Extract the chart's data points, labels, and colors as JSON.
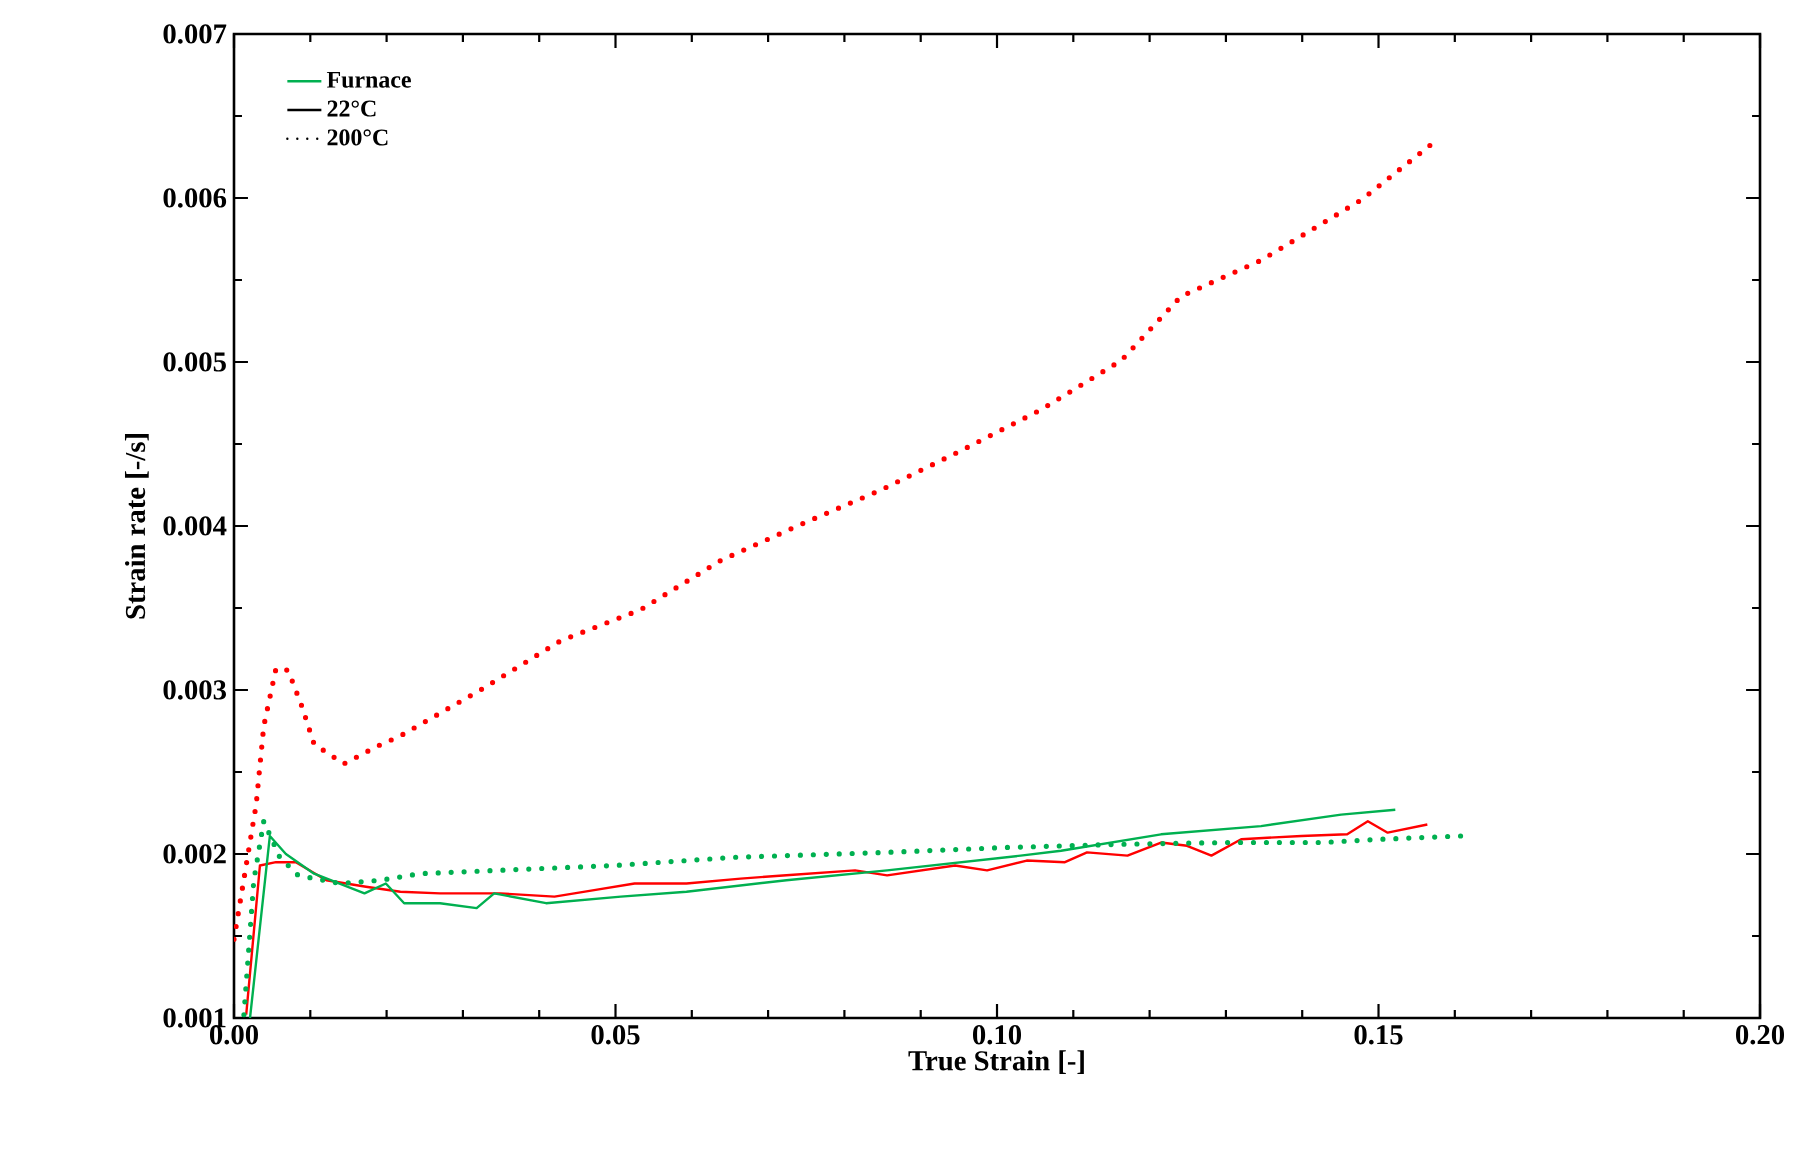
{
  "chart_data": {
    "type": "line",
    "xlabel": "True Strain [-]",
    "ylabel": "Strain rate [-/s]",
    "xlim": [
      0,
      0.2
    ],
    "ylim": [
      0.001,
      0.007
    ],
    "xticks": [
      {
        "value": 0,
        "label": "0.00"
      },
      {
        "value": 0.05,
        "label": "0.05"
      },
      {
        "value": 0.1,
        "label": "0.10"
      },
      {
        "value": 0.15,
        "label": "0.15"
      },
      {
        "value": 0.2,
        "label": "0.20"
      }
    ],
    "yticks": [
      0.001,
      0.002,
      0.003,
      0.004,
      0.005,
      0.006,
      0.007
    ],
    "grid": false,
    "legend": "top left",
    "marker": "none",
    "annotations": [
      "22°C",
      "200°C"
    ],
    "series": [
      {
        "color": "#ff0000",
        "line_style": "solid",
        "x": [
          0.0016,
          0.0034,
          0.0055,
          0.0081,
          0.0121,
          0.0173,
          0.0218,
          0.027,
          0.0349,
          0.042,
          0.0472,
          0.0525,
          0.0593,
          0.0664,
          0.0724,
          0.0814,
          0.0856,
          0.0945,
          0.0987,
          0.1039,
          0.1089,
          0.1118,
          0.1171,
          0.1215,
          0.1249,
          0.1281,
          0.132,
          0.1399,
          0.1459,
          0.1486,
          0.1512,
          0.1564
        ],
        "values": [
          0.00102,
          0.00193,
          0.00195,
          0.00195,
          0.00184,
          0.0018,
          0.00177,
          0.00176,
          0.00176,
          0.00174,
          0.00178,
          0.00182,
          0.00182,
          0.00185,
          0.00187,
          0.0019,
          0.00187,
          0.00193,
          0.0019,
          0.00196,
          0.00195,
          0.00201,
          0.00199,
          0.00207,
          0.00205,
          0.00199,
          0.00209,
          0.00211,
          0.00212,
          0.0022,
          0.00213,
          0.00218
        ]
      },
      {
        "name": "Furnace",
        "color": "#00b050",
        "line_style": "solid",
        "x": [
          0.0021,
          0.0047,
          0.0068,
          0.0105,
          0.0171,
          0.0199,
          0.0223,
          0.027,
          0.0318,
          0.0341,
          0.0409,
          0.0507,
          0.0593,
          0.0724,
          0.0856,
          0.1031,
          0.1084,
          0.1215,
          0.1346,
          0.1451,
          0.1522
        ],
        "values": [
          0.001,
          0.00211,
          0.002,
          0.00188,
          0.00176,
          0.00182,
          0.0017,
          0.0017,
          0.00167,
          0.00176,
          0.0017,
          0.00174,
          0.00177,
          0.00184,
          0.0019,
          0.00199,
          0.00202,
          0.00212,
          0.00217,
          0.00224,
          0.00227
        ]
      },
      {
        "color": "#ff0000",
        "line_style": "dotted",
        "x": [
          0.0,
          0.0029,
          0.0039,
          0.0055,
          0.0071,
          0.0089,
          0.0105,
          0.0144,
          0.0189,
          0.0218,
          0.0323,
          0.0428,
          0.0533,
          0.0638,
          0.0743,
          0.0848,
          0.0953,
          0.1058,
          0.1163,
          0.1241,
          0.1346,
          0.1478,
          0.157
        ],
        "values": [
          0.00148,
          0.0023,
          0.00278,
          0.00313,
          0.00312,
          0.0029,
          0.00267,
          0.00255,
          0.00266,
          0.00272,
          0.003,
          0.0033,
          0.00349,
          0.00379,
          0.00401,
          0.00422,
          0.00446,
          0.00471,
          0.00501,
          0.0054,
          0.00562,
          0.00599,
          0.00633
        ]
      },
      {
        "color": "#00b050",
        "line_style": "dotted",
        "x": [
          0.0013,
          0.0026,
          0.0039,
          0.006,
          0.0084,
          0.0139,
          0.0192,
          0.0244,
          0.0344,
          0.0499,
          0.0656,
          0.0856,
          0.1013,
          0.1171,
          0.1302,
          0.1425,
          0.1504,
          0.1609
        ],
        "values": [
          0.00102,
          0.00184,
          0.0022,
          0.00198,
          0.00187,
          0.00182,
          0.00184,
          0.00188,
          0.0019,
          0.00193,
          0.00198,
          0.00201,
          0.00204,
          0.00206,
          0.00207,
          0.00207,
          0.00209,
          0.00211
        ]
      }
    ]
  }
}
